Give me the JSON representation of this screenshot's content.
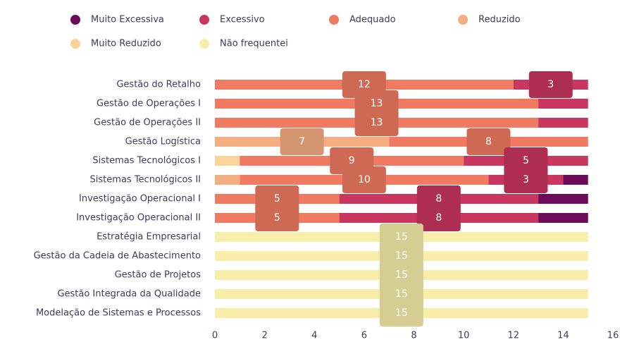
{
  "chart_data": {
    "type": "stacked-bar-horizontal",
    "categories": [
      "Gestão do Retalho",
      "Gestão de Operações I",
      "Gestão de Operações II",
      "Gestão Logística",
      "Sistemas Tecnológicos I",
      "Sistemas Tecnológicos II",
      "Investigação Operacional I",
      "Investigação Operacional II",
      "Estratégia Empresarial",
      "Gestão da Cadeia de Abastecimento",
      "Gestão de Projetos",
      "Gestão Integrada da Qualidade",
      "Modelação de Sistemas e Processos"
    ],
    "series": [
      {
        "name": "Muito Reduzido",
        "color": "#f9d398",
        "values": [
          null,
          null,
          null,
          null,
          1,
          null,
          null,
          null,
          null,
          null,
          null,
          null,
          null
        ]
      },
      {
        "name": "Reduzido",
        "color": "#f5ad82",
        "values": [
          null,
          null,
          null,
          7,
          null,
          1,
          null,
          null,
          null,
          null,
          null,
          null,
          null
        ]
      },
      {
        "name": "Adequado",
        "color": "#f07b62",
        "values": [
          12,
          13,
          13,
          8,
          9,
          10,
          5,
          5,
          null,
          null,
          null,
          null,
          null
        ]
      },
      {
        "name": "Excessivo",
        "color": "#c9365f",
        "values": [
          3,
          2,
          2,
          null,
          5,
          3,
          8,
          8,
          null,
          null,
          null,
          null,
          null
        ]
      },
      {
        "name": "Muito Excessiva",
        "color": "#6d0b5b",
        "values": [
          null,
          null,
          null,
          null,
          null,
          1,
          2,
          2,
          null,
          null,
          null,
          null,
          null
        ]
      },
      {
        "name": "Não frequentei",
        "color": "#f8eeaa",
        "values": [
          null,
          null,
          null,
          null,
          null,
          null,
          null,
          null,
          15,
          15,
          15,
          15,
          15
        ]
      }
    ],
    "legend_order": [
      4,
      3,
      2,
      1,
      0,
      5
    ],
    "xlim": [
      0,
      16
    ],
    "xticks": [
      0,
      2,
      4,
      6,
      8,
      10,
      12,
      14,
      16
    ],
    "grid": false
  }
}
